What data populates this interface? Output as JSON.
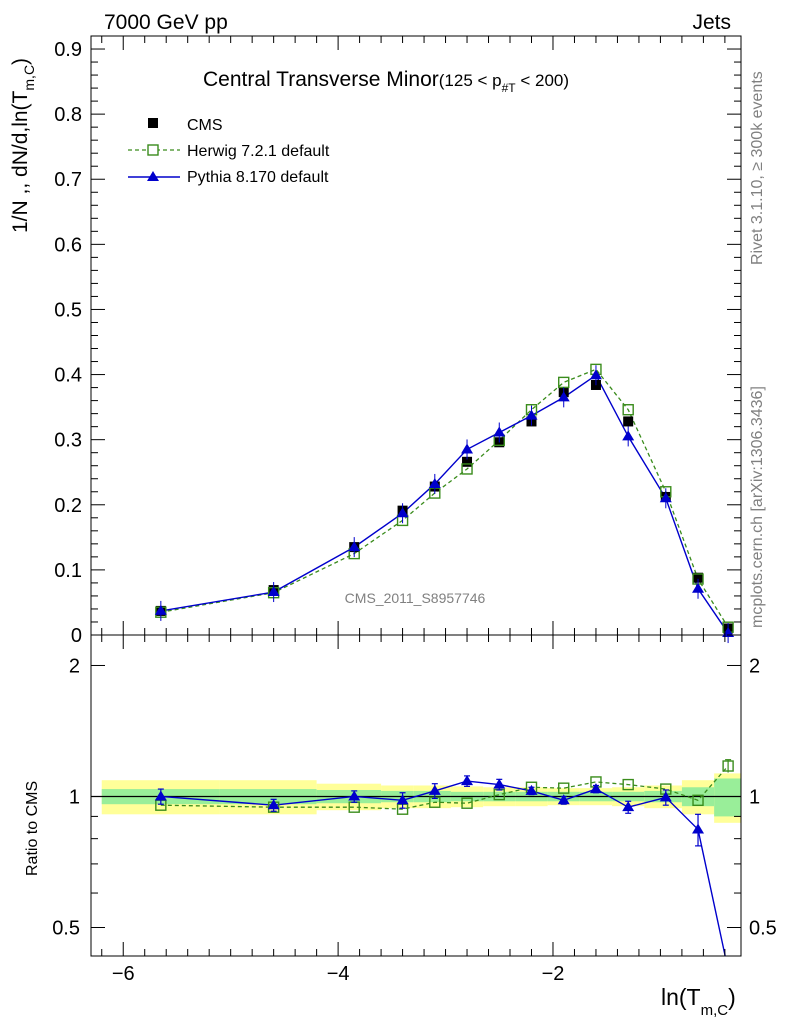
{
  "header": {
    "left": "7000 GeV pp",
    "right": "Jets"
  },
  "plot_title": {
    "main": "Central Transverse Minor",
    "range_pre": "(125 < p",
    "range_sub": "#T",
    "range_post": "  < 200)"
  },
  "y_axis_label": {
    "main": "1/N ,, dN/d,ln(T",
    "sub": "m,C",
    "close": ")"
  },
  "ratio_axis_label": "Ratio to CMS",
  "x_axis_label": {
    "main": "ln(T",
    "sub": "m,C",
    "close": ")"
  },
  "side_text": {
    "rivet": "Rivet 3.1.10, ≥ 300k events",
    "mcplots": "mcplots.cern.ch [arXiv:1306.3436]"
  },
  "watermark": "CMS_2011_S8957746",
  "legend": [
    {
      "label": "CMS"
    },
    {
      "label": "Herwig 7.2.1 default"
    },
    {
      "label": "Pythia 8.170 default"
    }
  ],
  "colors": {
    "cms": "#000000",
    "herwig": "#3a8c1c",
    "pythia": "#0000cc",
    "band_inner": "#99ee99",
    "band_outer": "#ffff99"
  },
  "chart_data": {
    "type": "scatter",
    "x_ticks": [
      -6,
      -4,
      -2
    ],
    "xlim": [
      -6.3,
      -0.25
    ],
    "main_ylim": [
      0,
      0.92
    ],
    "main_y_ticks": [
      0,
      0.1,
      0.2,
      0.3,
      0.4,
      0.5,
      0.6,
      0.7,
      0.8,
      0.9
    ],
    "main_y_tick_labels": [
      "0",
      "0.1",
      "0.2",
      "0.3",
      "0.4",
      "0.5",
      "0.6",
      "0.7",
      "0.8",
      "0.9"
    ],
    "ratio_ylim": [
      0.43,
      2.35
    ],
    "ratio_y_ticks": [
      0.5,
      1,
      2
    ],
    "ratio_y_tick_labels": [
      "0.5",
      "1",
      "2"
    ],
    "x": [
      -5.65,
      -4.6,
      -3.85,
      -3.4,
      -3.1,
      -2.8,
      -2.5,
      -2.2,
      -1.9,
      -1.6,
      -1.3,
      -0.95,
      -0.65,
      -0.37
    ],
    "series": [
      {
        "name": "CMS",
        "values": [
          0.037,
          0.069,
          0.135,
          0.191,
          0.228,
          0.266,
          0.296,
          0.328,
          0.373,
          0.384,
          0.328,
          0.212,
          0.088,
          0.01
        ]
      },
      {
        "name": "Herwig 7.2.1 default",
        "values": [
          0.035,
          0.065,
          0.125,
          0.176,
          0.218,
          0.255,
          0.299,
          0.346,
          0.388,
          0.408,
          0.346,
          0.22,
          0.086,
          0.012
        ]
      },
      {
        "name": "Pythia 8.170 default",
        "values": [
          0.037,
          0.066,
          0.135,
          0.187,
          0.232,
          0.285,
          0.311,
          0.337,
          0.365,
          0.399,
          0.305,
          0.21,
          0.071,
          0.003
        ]
      }
    ],
    "ratio_series": [
      {
        "name": "Herwig 7.2.1 default",
        "values": [
          0.955,
          0.945,
          0.945,
          0.935,
          0.97,
          0.965,
          1.01,
          1.05,
          1.045,
          1.08,
          1.065,
          1.04,
          0.98,
          1.175
        ]
      },
      {
        "name": "Pythia 8.170 default",
        "values": [
          1.0,
          0.955,
          1.0,
          0.98,
          1.03,
          1.085,
          1.065,
          1.03,
          0.98,
          1.04,
          0.945,
          0.995,
          0.84,
          0.4
        ]
      }
    ],
    "pythia_ratio_errors": [
      0.04,
      0.03,
      0.03,
      0.04,
      0.04,
      0.03,
      0.03,
      0.02,
      0.02,
      0.02,
      0.03,
      0.04,
      0.07,
      0.05
    ],
    "herwig_ratio_errors": [
      0,
      0,
      0,
      0,
      0,
      0,
      0,
      0,
      0,
      0,
      0,
      0,
      0,
      0.04
    ],
    "band": {
      "edges": [
        -6.2,
        -5.1,
        -4.2,
        -3.6,
        -3.3,
        -2.95,
        -2.65,
        -2.35,
        -2.05,
        -1.75,
        -1.45,
        -1.15,
        -0.8,
        -0.5,
        -0.25
      ],
      "inner": [
        0.04,
        0.04,
        0.035,
        0.03,
        0.03,
        0.025,
        0.025,
        0.025,
        0.025,
        0.025,
        0.025,
        0.03,
        0.05,
        0.1
      ],
      "outer": [
        0.09,
        0.09,
        0.07,
        0.06,
        0.06,
        0.055,
        0.05,
        0.05,
        0.045,
        0.045,
        0.05,
        0.06,
        0.09,
        0.13
      ]
    }
  }
}
